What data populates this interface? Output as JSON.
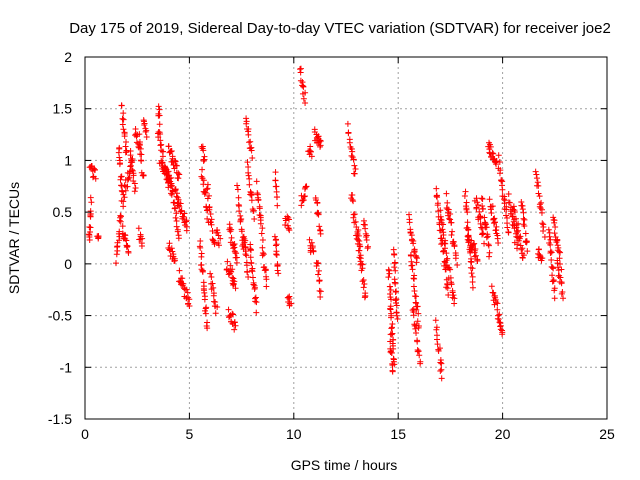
{
  "chart_data": {
    "type": "scatter",
    "title": "Day 175 of 2019, Sidereal Day-to-day VTEC variation (SDTVAR) for receiver joe2",
    "xlabel": "GPS time / hours",
    "ylabel": "SDTVAR / TECUs",
    "xlim": [
      0,
      25
    ],
    "ylim": [
      -1.5,
      2
    ],
    "xticks": [
      0,
      5,
      10,
      15,
      20,
      25
    ],
    "yticks": [
      -1.5,
      -1,
      -0.5,
      0,
      0.5,
      1,
      1.5,
      2
    ],
    "xtick_labels": [
      "0",
      "5",
      "10",
      "15",
      "20",
      "25"
    ],
    "ytick_labels": [
      "-1.5",
      "-1",
      "-0.5",
      "0",
      "0.5",
      "1",
      "1.5",
      "2"
    ],
    "grid": true,
    "marker": "+",
    "color": "#ff0000",
    "segments": [
      {
        "x0": 0.2,
        "x1": 0.3,
        "y0": 0.2,
        "y1": 0.62
      },
      {
        "x0": 0.25,
        "x1": 0.5,
        "y0": 0.95,
        "y1": 0.85
      },
      {
        "x0": 0.6,
        "x1": 0.65,
        "y0": 0.22,
        "y1": 0.22
      },
      {
        "x0": 1.5,
        "x1": 1.75,
        "y0": 0.05,
        "y1": 0.55
      },
      {
        "x0": 1.6,
        "x1": 1.85,
        "y0": 1.12,
        "y1": 0.55
      },
      {
        "x0": 1.75,
        "x1": 2.0,
        "y0": 1.52,
        "y1": 1.05
      },
      {
        "x0": 1.9,
        "x1": 2.25,
        "y0": 0.7,
        "y1": 1.0
      },
      {
        "x0": 1.8,
        "x1": 2.1,
        "y0": 0.35,
        "y1": 0.12
      },
      {
        "x0": 2.15,
        "x1": 2.4,
        "y0": 1.1,
        "y1": 0.7
      },
      {
        "x0": 2.4,
        "x1": 2.6,
        "y0": 1.3,
        "y1": 1.1
      },
      {
        "x0": 2.6,
        "x1": 2.8,
        "y0": 1.2,
        "y1": 0.8
      },
      {
        "x0": 2.6,
        "x1": 2.75,
        "y0": 0.3,
        "y1": 0.2
      },
      {
        "x0": 2.8,
        "x1": 2.95,
        "y0": 1.38,
        "y1": 1.25
      },
      {
        "x0": 3.5,
        "x1": 3.6,
        "y0": 1.5,
        "y1": 1.4
      },
      {
        "x0": 3.5,
        "x1": 4.0,
        "y0": 1.3,
        "y1": 0.75
      },
      {
        "x0": 3.6,
        "x1": 4.2,
        "y0": 1.0,
        "y1": 0.75
      },
      {
        "x0": 4.0,
        "x1": 4.5,
        "y0": 1.12,
        "y1": 0.85
      },
      {
        "x0": 4.1,
        "x1": 4.5,
        "y0": 0.8,
        "y1": 0.25
      },
      {
        "x0": 4.3,
        "x1": 4.9,
        "y0": 0.7,
        "y1": 0.35
      },
      {
        "x0": 4.0,
        "x1": 4.3,
        "y0": 0.2,
        "y1": 0.0
      },
      {
        "x0": 4.5,
        "x1": 5.0,
        "y0": -0.1,
        "y1": -0.38
      },
      {
        "x0": 5.6,
        "x1": 5.75,
        "y0": 1.1,
        "y1": 1.0
      },
      {
        "x0": 5.6,
        "x1": 5.9,
        "y0": 0.9,
        "y1": 0.45
      },
      {
        "x0": 5.5,
        "x1": 5.85,
        "y0": 0.2,
        "y1": -0.6
      },
      {
        "x0": 5.85,
        "x1": 6.2,
        "y0": 0.75,
        "y1": 0.15
      },
      {
        "x0": 6.0,
        "x1": 6.3,
        "y0": -0.15,
        "y1": -0.45
      },
      {
        "x0": 6.3,
        "x1": 6.45,
        "y0": 0.3,
        "y1": 0.2
      },
      {
        "x0": 6.8,
        "x1": 7.2,
        "y0": 0.0,
        "y1": -0.2
      },
      {
        "x0": 6.9,
        "x1": 7.2,
        "y0": -0.45,
        "y1": -0.62
      },
      {
        "x0": 6.9,
        "x1": 7.3,
        "y0": 0.35,
        "y1": 0.05
      },
      {
        "x0": 7.3,
        "x1": 7.6,
        "y0": 0.7,
        "y1": 0.15
      },
      {
        "x0": 7.6,
        "x1": 7.8,
        "y0": 0.3,
        "y1": -0.12
      },
      {
        "x0": 7.7,
        "x1": 8.0,
        "y0": 1.4,
        "y1": 1.05
      },
      {
        "x0": 7.8,
        "x1": 8.1,
        "y0": 0.95,
        "y1": 0.45
      },
      {
        "x0": 7.9,
        "x1": 8.2,
        "y0": 0.2,
        "y1": -0.45
      },
      {
        "x0": 8.25,
        "x1": 8.5,
        "y0": 0.75,
        "y1": 0.25
      },
      {
        "x0": 8.5,
        "x1": 8.7,
        "y0": 0.15,
        "y1": -0.2
      },
      {
        "x0": 9.1,
        "x1": 9.2,
        "y0": 0.85,
        "y1": 0.6
      },
      {
        "x0": 9.1,
        "x1": 9.25,
        "y0": 0.3,
        "y1": -0.1
      },
      {
        "x0": 9.6,
        "x1": 9.8,
        "y0": 0.42,
        "y1": 0.38
      },
      {
        "x0": 9.7,
        "x1": 9.85,
        "y0": -0.3,
        "y1": -0.38
      },
      {
        "x0": 10.3,
        "x1": 10.55,
        "y0": 1.88,
        "y1": 1.6
      },
      {
        "x0": 10.35,
        "x1": 10.6,
        "y0": 0.6,
        "y1": 0.72
      },
      {
        "x0": 10.7,
        "x1": 10.85,
        "y0": 1.12,
        "y1": 1.05
      },
      {
        "x0": 10.75,
        "x1": 10.95,
        "y0": 0.2,
        "y1": 0.1
      },
      {
        "x0": 11.0,
        "x1": 11.3,
        "y0": 1.25,
        "y1": 1.15
      },
      {
        "x0": 11.05,
        "x1": 11.3,
        "y0": 0.65,
        "y1": 0.3
      },
      {
        "x0": 11.1,
        "x1": 11.3,
        "y0": 0.05,
        "y1": -0.3
      },
      {
        "x0": 12.6,
        "x1": 12.95,
        "y0": 1.3,
        "y1": 0.85
      },
      {
        "x0": 12.75,
        "x1": 13.2,
        "y0": 0.7,
        "y1": 0.0
      },
      {
        "x0": 13.1,
        "x1": 13.45,
        "y0": 0.3,
        "y1": -0.35
      },
      {
        "x0": 13.35,
        "x1": 13.55,
        "y0": 0.45,
        "y1": 0.15
      },
      {
        "x0": 14.55,
        "x1": 14.8,
        "y0": -0.05,
        "y1": -1.0
      },
      {
        "x0": 14.6,
        "x1": 14.75,
        "y0": -0.7,
        "y1": -1.02
      },
      {
        "x0": 14.8,
        "x1": 14.95,
        "y0": 0.1,
        "y1": -0.55
      },
      {
        "x0": 15.5,
        "x1": 15.9,
        "y0": 0.42,
        "y1": 0.0
      },
      {
        "x0": 15.6,
        "x1": 16.0,
        "y0": 0.1,
        "y1": -0.6
      },
      {
        "x0": 15.7,
        "x1": 16.05,
        "y0": -0.4,
        "y1": -0.95
      },
      {
        "x0": 16.8,
        "x1": 17.1,
        "y0": -0.6,
        "y1": -1.08
      },
      {
        "x0": 16.8,
        "x1": 17.4,
        "y0": 0.7,
        "y1": -0.3
      },
      {
        "x0": 17.0,
        "x1": 17.7,
        "y0": 0.5,
        "y1": -0.4
      },
      {
        "x0": 17.3,
        "x1": 17.8,
        "y0": 0.65,
        "y1": 0.0
      },
      {
        "x0": 18.2,
        "x1": 18.6,
        "y0": 0.65,
        "y1": -0.2
      },
      {
        "x0": 18.3,
        "x1": 18.8,
        "y0": 0.3,
        "y1": 0.05
      },
      {
        "x0": 18.7,
        "x1": 19.1,
        "y0": 0.62,
        "y1": 0.25
      },
      {
        "x0": 19.0,
        "x1": 19.4,
        "y0": 0.6,
        "y1": 0.1
      },
      {
        "x0": 19.3,
        "x1": 19.7,
        "y0": 1.15,
        "y1": 0.95
      },
      {
        "x0": 19.4,
        "x1": 19.8,
        "y0": 0.6,
        "y1": 0.25
      },
      {
        "x0": 19.5,
        "x1": 20.0,
        "y0": -0.25,
        "y1": -0.65
      },
      {
        "x0": 19.8,
        "x1": 20.3,
        "y0": 1.0,
        "y1": 0.3
      },
      {
        "x0": 20.3,
        "x1": 20.7,
        "y0": 0.65,
        "y1": 0.15
      },
      {
        "x0": 20.5,
        "x1": 21.0,
        "y0": 0.55,
        "y1": 0.05
      },
      {
        "x0": 20.9,
        "x1": 21.2,
        "y0": 0.6,
        "y1": 0.15
      },
      {
        "x0": 21.6,
        "x1": 22.0,
        "y0": 0.9,
        "y1": 0.3
      },
      {
        "x0": 21.7,
        "x1": 21.9,
        "y0": 0.1,
        "y1": 0.05
      },
      {
        "x0": 22.2,
        "x1": 22.5,
        "y0": 0.35,
        "y1": -0.3
      },
      {
        "x0": 22.4,
        "x1": 22.8,
        "y0": 0.45,
        "y1": 0.0
      },
      {
        "x0": 22.6,
        "x1": 22.9,
        "y0": 0.0,
        "y1": -0.3
      }
    ]
  }
}
